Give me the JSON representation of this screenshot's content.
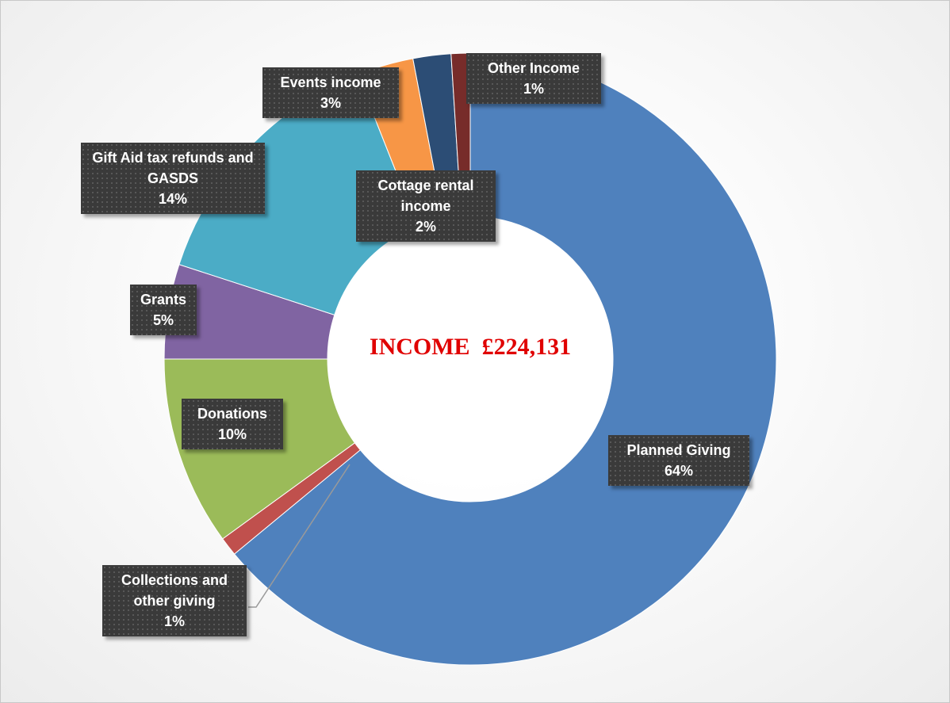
{
  "chart_data": {
    "type": "donut",
    "center_label": "INCOME  £224,131",
    "categories": [
      "Planned Giving",
      "Collections and other giving",
      "Donations",
      "Grants",
      "Gift Aid tax refunds and GASDS",
      "Events income",
      "Cottage rental income",
      "Other Income"
    ],
    "values": [
      64,
      1,
      10,
      5,
      14,
      3,
      2,
      1
    ],
    "value_labels": [
      "64%",
      "1%",
      "10%",
      "5%",
      "14%",
      "3%",
      "2%",
      "1%"
    ],
    "colors": [
      "#4f81bd",
      "#c0504d",
      "#9bbb59",
      "#8064a2",
      "#4bacc6",
      "#f79646",
      "#2c4d75",
      "#772c2a"
    ]
  }
}
